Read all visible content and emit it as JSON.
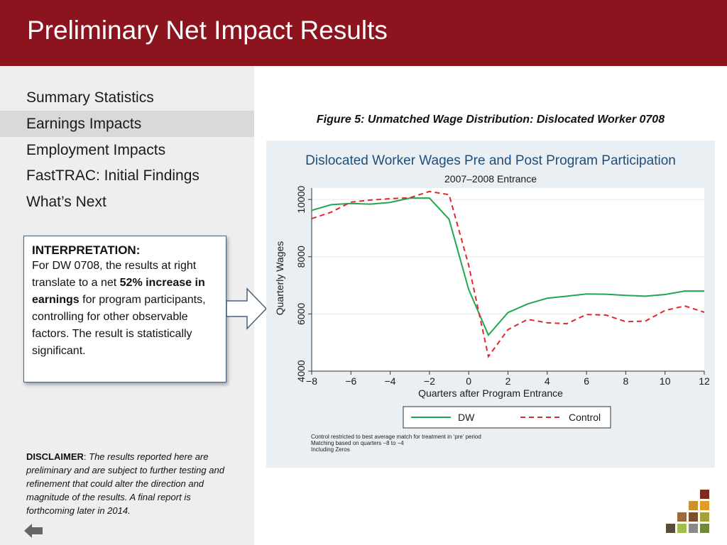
{
  "header": {
    "title": "Preliminary Net Impact Results"
  },
  "sidebar": {
    "items": [
      {
        "label": "Summary Statistics",
        "active": false
      },
      {
        "label": "Earnings Impacts",
        "active": true
      },
      {
        "label": "Employment Impacts",
        "active": false
      },
      {
        "label": "FastTRAC: Initial Findings",
        "active": false
      },
      {
        "label": "What’s Next",
        "active": false
      }
    ]
  },
  "callout": {
    "title": "INTERPRETATION:",
    "text_before": "For DW 0708, the results at right translate to a net ",
    "text_bold": "52% increase in earnings",
    "text_after": " for program participants, controlling for other observable factors. The result is statistically significant."
  },
  "disclaimer": {
    "label": "DISCLAIMER",
    "separator": ": ",
    "text": "The results reported here are preliminary and are subject to further testing and refinement that could alter the direction and magnitude of the results. A final report is forthcoming later in 2014."
  },
  "figure": {
    "caption": "Figure 5: Unmatched Wage Distribution: Dislocated Worker 0708"
  },
  "colors": {
    "header_bg": "#8b141f",
    "dw_line": "#1ea84f",
    "control_line": "#e0282e",
    "chart_title": "#1f4e79"
  },
  "chart_data": {
    "type": "line",
    "title": "Dislocated Worker Wages Pre and Post Program Participation",
    "subtitle": "2007–2008 Entrance",
    "xlabel": "Quarters after Program Entrance",
    "ylabel": "Quarterly Wages",
    "xlim": [
      -8,
      12
    ],
    "ylim": [
      4000,
      10400
    ],
    "xticks": [
      -8,
      -6,
      -4,
      -2,
      0,
      2,
      4,
      6,
      8,
      10,
      12
    ],
    "xtick_labels": [
      "−8",
      "−6",
      "−4",
      "−2",
      "0",
      "2",
      "4",
      "6",
      "8",
      "10",
      "12"
    ],
    "yticks": [
      4000,
      6000,
      8000,
      10000
    ],
    "ytick_labels": [
      "4000",
      "6000",
      "8000",
      "10000"
    ],
    "grid": true,
    "legend_position": "bottom",
    "x": [
      -8,
      -7,
      -6,
      -5,
      -4,
      -3,
      -2,
      -1,
      0,
      1,
      2,
      3,
      4,
      5,
      6,
      7,
      8,
      9,
      10,
      11,
      12
    ],
    "series": [
      {
        "name": "DW",
        "style": "solid",
        "values": [
          9620,
          9820,
          9860,
          9840,
          9900,
          10050,
          10050,
          9310,
          6850,
          5260,
          6050,
          6350,
          6550,
          6620,
          6700,
          6690,
          6650,
          6620,
          6680,
          6800,
          6800
        ]
      },
      {
        "name": "Control",
        "style": "dashed",
        "values": [
          9330,
          9560,
          9910,
          9980,
          10030,
          10060,
          10280,
          10170,
          7700,
          4510,
          5450,
          5810,
          5690,
          5660,
          5980,
          5960,
          5730,
          5750,
          6120,
          6280,
          6060
        ]
      }
    ],
    "notes": [
      "Control restricted to best average match for treatment in ‘pre’ period",
      "Matching based on quarters −8 to −4",
      "Including Zeros"
    ]
  }
}
